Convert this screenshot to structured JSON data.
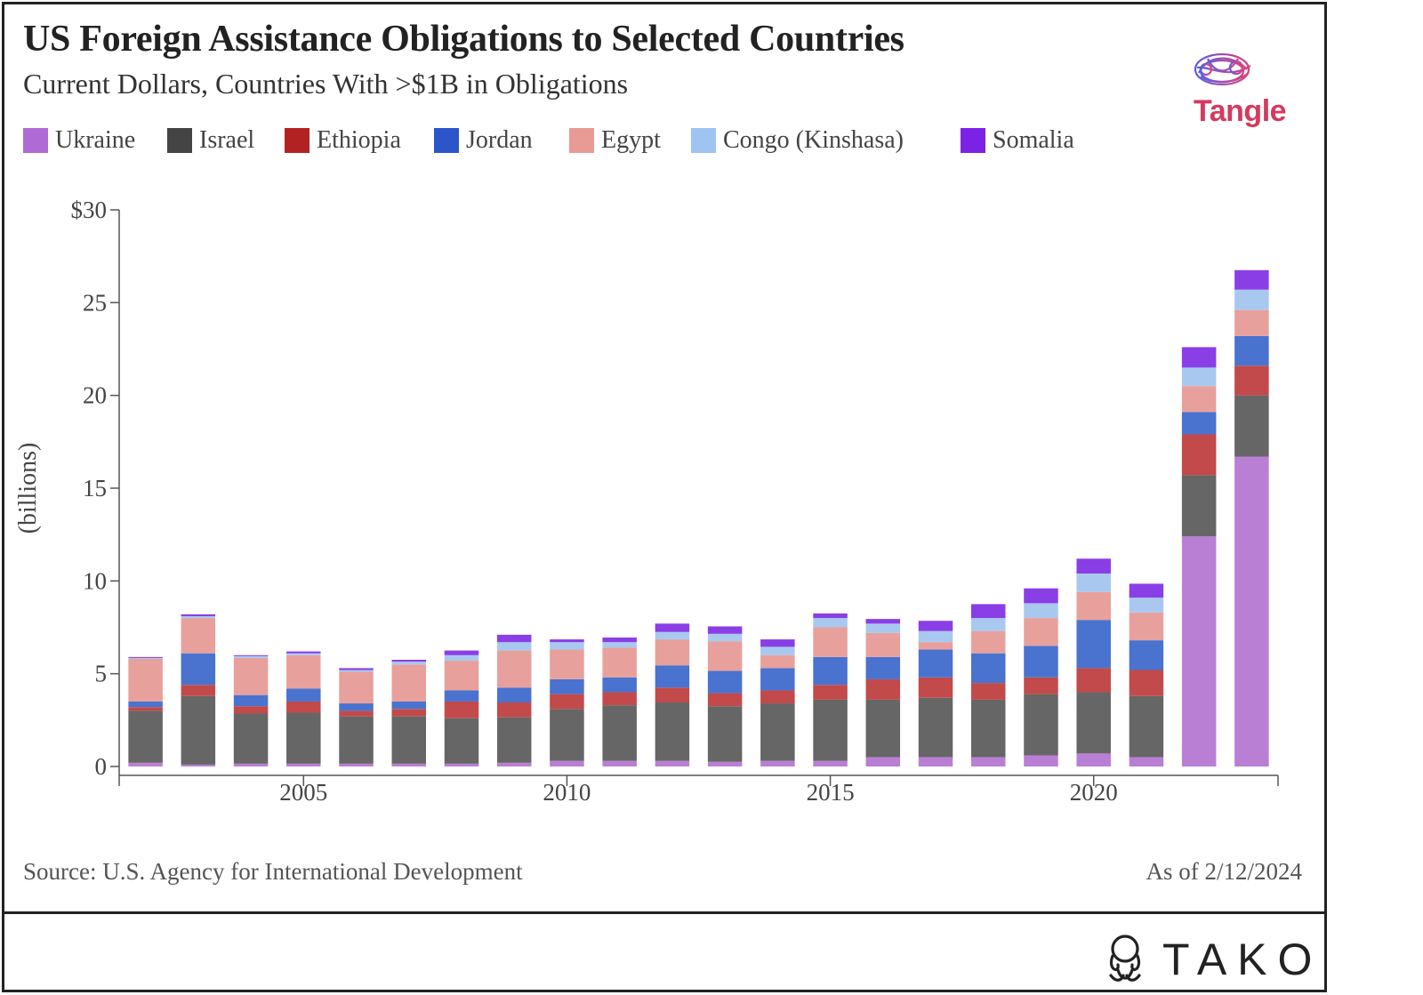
{
  "title": "US Foreign Assistance Obligations to Selected Countries",
  "subtitle": "Current Dollars, Countries With >$1B in Obligations",
  "brand_top": "Tangle",
  "brand_bottom": "TAKO",
  "footer": {
    "source": "Source: U.S. Agency for International Development",
    "as_of": "As of 2/12/2024"
  },
  "colors": {
    "Ukraine": "#b97fd4",
    "Israel": "#666666",
    "Ethiopia": "#c24a4a",
    "Jordan": "#4a72cf",
    "Egypt": "#e8a09c",
    "Congo (Kinshasa)": "#a8c8f0",
    "Somalia": "#8a3ee6"
  },
  "legend": [
    {
      "name": "Ukraine",
      "color": "#b06ad6"
    },
    {
      "name": "Israel",
      "color": "#444444"
    },
    {
      "name": "Ethiopia",
      "color": "#b22222"
    },
    {
      "name": "Jordan",
      "color": "#2b55c8"
    },
    {
      "name": "Egypt",
      "color": "#e89a94"
    },
    {
      "name": "Congo (Kinshasa)",
      "color": "#9ec4f2"
    },
    {
      "name": "Somalia",
      "color": "#7b22e6"
    }
  ],
  "chart_data": {
    "type": "bar",
    "stacked": true,
    "title": "US Foreign Assistance Obligations to Selected Countries",
    "subtitle": "Current Dollars, Countries With >$1B in Obligations",
    "xlabel": "",
    "ylabel": "(billions)",
    "ylim": [
      0,
      30
    ],
    "yticks": [
      "$30",
      "25",
      "20",
      "15",
      "10",
      "5",
      "0"
    ],
    "ytick_values": [
      30,
      25,
      20,
      15,
      10,
      5,
      0
    ],
    "xticks": [
      "2005",
      "2010",
      "2015",
      "2020"
    ],
    "xtick_values": [
      2005,
      2010,
      2015,
      2020
    ],
    "categories": [
      2002,
      2003,
      2004,
      2005,
      2006,
      2007,
      2008,
      2009,
      2010,
      2011,
      2012,
      2013,
      2014,
      2015,
      2016,
      2017,
      2018,
      2019,
      2020,
      2021,
      2022,
      2023
    ],
    "series": [
      {
        "name": "Ukraine",
        "values": [
          0.2,
          0.1,
          0.15,
          0.15,
          0.15,
          0.15,
          0.15,
          0.2,
          0.3,
          0.3,
          0.3,
          0.25,
          0.3,
          0.3,
          0.5,
          0.5,
          0.5,
          0.6,
          0.7,
          0.5,
          12.4,
          16.7
        ]
      },
      {
        "name": "Israel",
        "values": [
          2.8,
          3.7,
          2.7,
          2.75,
          2.55,
          2.55,
          2.45,
          2.45,
          2.8,
          3.0,
          3.15,
          3.0,
          3.1,
          3.3,
          3.1,
          3.2,
          3.1,
          3.3,
          3.3,
          3.3,
          3.3,
          3.3
        ]
      },
      {
        "name": "Ethiopia",
        "values": [
          0.2,
          0.6,
          0.4,
          0.6,
          0.3,
          0.4,
          0.9,
          0.8,
          0.8,
          0.7,
          0.8,
          0.7,
          0.7,
          0.8,
          1.1,
          1.1,
          0.9,
          0.9,
          1.3,
          1.4,
          2.2,
          1.6
        ]
      },
      {
        "name": "Jordan",
        "values": [
          0.3,
          1.7,
          0.6,
          0.7,
          0.4,
          0.4,
          0.6,
          0.8,
          0.8,
          0.8,
          1.2,
          1.2,
          1.2,
          1.5,
          1.2,
          1.5,
          1.6,
          1.7,
          2.6,
          1.6,
          1.2,
          1.6
        ]
      },
      {
        "name": "Egypt",
        "values": [
          2.3,
          1.9,
          2.0,
          1.8,
          1.7,
          2.0,
          1.6,
          2.0,
          1.6,
          1.6,
          1.4,
          1.6,
          0.7,
          1.6,
          1.3,
          0.4,
          1.2,
          1.5,
          1.5,
          1.5,
          1.4,
          1.4
        ]
      },
      {
        "name": "Congo (Kinshasa)",
        "values": [
          0.05,
          0.1,
          0.1,
          0.1,
          0.1,
          0.15,
          0.3,
          0.45,
          0.4,
          0.3,
          0.4,
          0.4,
          0.45,
          0.5,
          0.5,
          0.6,
          0.7,
          0.8,
          1.0,
          0.8,
          1.0,
          1.1
        ]
      },
      {
        "name": "Somalia",
        "values": [
          0.05,
          0.1,
          0.05,
          0.1,
          0.1,
          0.1,
          0.25,
          0.4,
          0.15,
          0.25,
          0.45,
          0.4,
          0.4,
          0.25,
          0.25,
          0.55,
          0.75,
          0.8,
          0.8,
          0.75,
          1.1,
          1.05
        ]
      }
    ]
  }
}
